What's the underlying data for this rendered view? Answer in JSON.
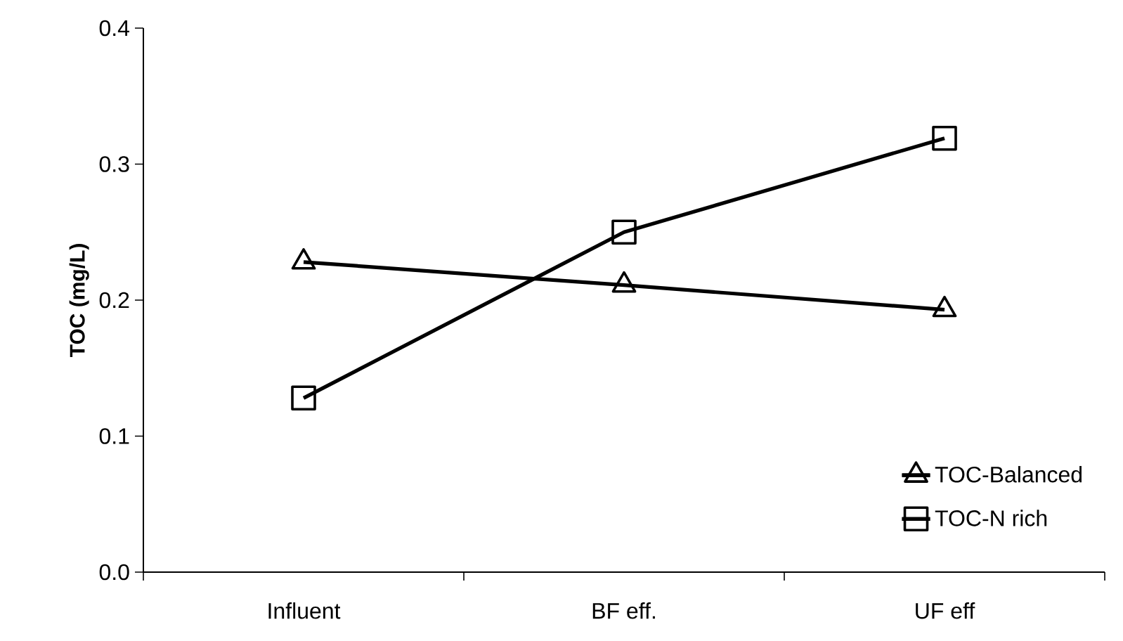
{
  "chart_data": {
    "type": "line",
    "ylabel": "TOC (mg/L)",
    "categories": [
      "Influent",
      "BF eff.",
      "UF eff"
    ],
    "series": [
      {
        "name": "TOC-Balanced",
        "color": "#000000",
        "marker": "triangle",
        "values": [
          0.228,
          0.211,
          0.193
        ]
      },
      {
        "name": "TOC-N rich",
        "color": "#000000",
        "marker": "square",
        "values": [
          0.128,
          0.25,
          0.319
        ]
      }
    ],
    "ylim": [
      0,
      0.4
    ],
    "yticks": [
      {
        "value": 0,
        "label": "0.0"
      },
      {
        "value": 0.1,
        "label": "0.1"
      },
      {
        "value": 0.2,
        "label": "0.2"
      },
      {
        "value": 0.3,
        "label": "0.3"
      },
      {
        "value": 0.4,
        "label": "0.4"
      }
    ],
    "grid": false,
    "legend": "bottom right",
    "line_style": "solid"
  }
}
